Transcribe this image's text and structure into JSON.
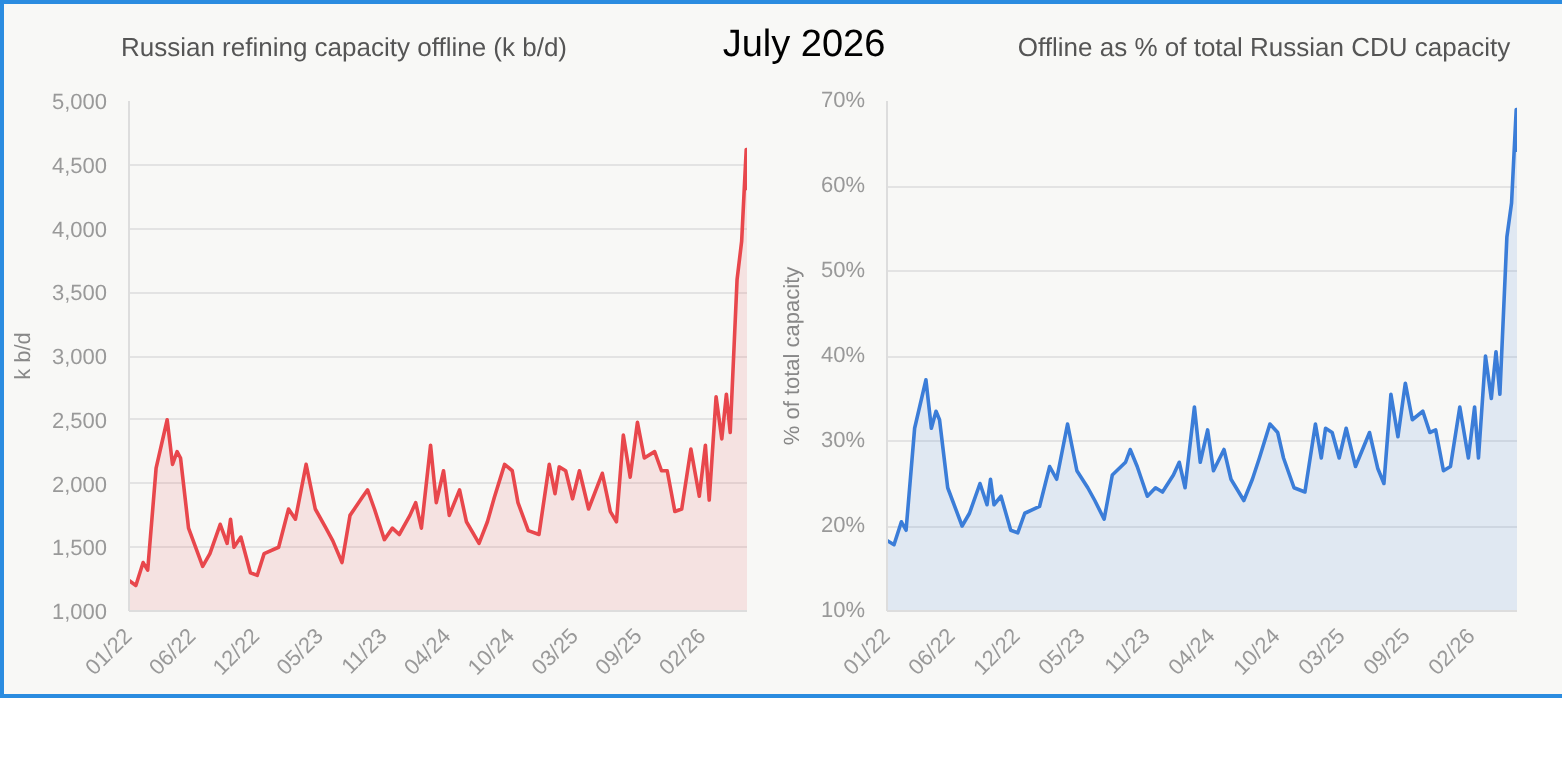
{
  "chart_data": [
    {
      "type": "area",
      "title": "Russian refining capacity offline (k b/d)",
      "ylabel": "k b/d",
      "annotations": [
        "July 2026"
      ],
      "x": [
        "2022-01-10",
        "2022-01-28",
        "2022-02-16",
        "2022-02-28",
        "2022-03-22",
        "2022-04-20",
        "2022-05-04",
        "2022-05-16",
        "2022-05-25",
        "2022-06-15",
        "2022-07-22",
        "2022-08-10",
        "2022-09-06",
        "2022-09-24",
        "2022-10-03",
        "2022-10-12",
        "2022-10-30",
        "2022-11-24",
        "2022-12-12",
        "2022-12-30",
        "2023-02-06",
        "2023-03-04",
        "2023-03-22",
        "2023-04-19",
        "2023-05-13",
        "2023-06-10",
        "2023-06-28",
        "2023-07-22",
        "2023-08-12",
        "2023-09-15",
        "2023-09-27",
        "2023-10-15",
        "2023-11-10",
        "2023-12-01",
        "2023-12-19",
        "2024-01-16",
        "2024-01-31",
        "2024-02-15",
        "2024-03-10",
        "2024-03-25",
        "2024-04-13",
        "2024-04-28",
        "2024-05-25",
        "2024-06-12",
        "2024-07-15",
        "2024-08-06",
        "2024-08-24",
        "2024-09-20",
        "2024-10-10",
        "2024-10-25",
        "2024-11-21",
        "2024-12-19",
        "2025-01-15",
        "2025-01-30",
        "2025-02-10",
        "2025-02-27",
        "2025-03-17",
        "2025-04-04",
        "2025-04-28",
        "2025-06-03",
        "2025-06-24",
        "2025-07-10",
        "2025-07-28",
        "2025-08-15",
        "2025-09-03",
        "2025-09-21",
        "2025-10-18",
        "2025-11-05",
        "2025-11-20",
        "2025-12-10",
        "2025-12-28",
        "2026-01-21",
        "2026-02-12",
        "2026-02-28",
        "2026-03-10",
        "2026-03-28",
        "2026-04-12",
        "2026-04-24",
        "2026-05-04",
        "2026-05-22",
        "2026-06-03",
        "2026-06-15",
        "2026-06-17"
      ],
      "series": [
        {
          "color": "#e8474c",
          "values": [
            1240,
            1200,
            1380,
            1320,
            2120,
            2500,
            2150,
            2250,
            2200,
            1650,
            1350,
            1450,
            1680,
            1530,
            1720,
            1500,
            1580,
            1300,
            1280,
            1450,
            1500,
            1800,
            1720,
            2150,
            1800,
            1650,
            1550,
            1380,
            1750,
            1900,
            1950,
            1800,
            1560,
            1650,
            1600,
            1750,
            1850,
            1650,
            2300,
            1850,
            2100,
            1750,
            1950,
            1700,
            1530,
            1700,
            1890,
            2150,
            2100,
            1850,
            1630,
            1600,
            2150,
            1920,
            2130,
            2100,
            1880,
            2100,
            1800,
            2080,
            1780,
            1700,
            2380,
            2050,
            2480,
            2200,
            2250,
            2100,
            2100,
            1780,
            1800,
            2270,
            1900,
            2300,
            1870,
            2680,
            2350,
            2700,
            2400,
            3600,
            3900,
            4620,
            4300
          ]
        }
      ],
      "xlim": [
        "2022-01-10",
        "2026-06-17"
      ],
      "xticks": [
        {
          "value": "2022-01-10",
          "label": "01/22"
        },
        {
          "value": "2022-06-26",
          "label": "06/22"
        },
        {
          "value": "2022-12-10",
          "label": "12/22"
        },
        {
          "value": "2023-05-26",
          "label": "05/23"
        },
        {
          "value": "2023-11-09",
          "label": "11/23"
        },
        {
          "value": "2024-04-24",
          "label": "04/24"
        },
        {
          "value": "2024-10-08",
          "label": "10/24"
        },
        {
          "value": "2025-03-24",
          "label": "03/25"
        },
        {
          "value": "2025-09-07",
          "label": "09/25"
        },
        {
          "value": "2026-02-21",
          "label": "02/26"
        }
      ],
      "ylim": [
        1000,
        5000
      ],
      "yticks": [
        {
          "value": 1000,
          "label": "1,000"
        },
        {
          "value": 1500,
          "label": "1,500"
        },
        {
          "value": 2000,
          "label": "2,000"
        },
        {
          "value": 2500,
          "label": "2,500"
        },
        {
          "value": 3000,
          "label": "3,000"
        },
        {
          "value": 3500,
          "label": "3,500"
        },
        {
          "value": 4000,
          "label": "4,000"
        },
        {
          "value": 4500,
          "label": "4,500"
        },
        {
          "value": 5000,
          "label": "5,000"
        }
      ],
      "grid": "y"
    },
    {
      "type": "area",
      "title": "Offline as % of total Russian CDU capacity",
      "ylabel": "% of total capacity",
      "x": [
        "2022-01-10",
        "2022-01-28",
        "2022-02-16",
        "2022-02-28",
        "2022-03-22",
        "2022-04-20",
        "2022-05-04",
        "2022-05-16",
        "2022-05-25",
        "2022-06-15",
        "2022-07-22",
        "2022-08-10",
        "2022-09-06",
        "2022-09-24",
        "2022-10-03",
        "2022-10-12",
        "2022-10-30",
        "2022-11-24",
        "2022-12-12",
        "2022-12-30",
        "2023-02-06",
        "2023-03-04",
        "2023-03-22",
        "2023-04-19",
        "2023-05-13",
        "2023-06-10",
        "2023-06-28",
        "2023-07-22",
        "2023-08-12",
        "2023-09-15",
        "2023-09-27",
        "2023-10-15",
        "2023-11-10",
        "2023-12-01",
        "2023-12-19",
        "2024-01-16",
        "2024-01-31",
        "2024-02-15",
        "2024-03-10",
        "2024-03-25",
        "2024-04-13",
        "2024-04-28",
        "2024-05-25",
        "2024-06-12",
        "2024-07-15",
        "2024-08-06",
        "2024-08-24",
        "2024-09-20",
        "2024-10-10",
        "2024-10-25",
        "2024-11-21",
        "2024-12-19",
        "2025-01-15",
        "2025-01-30",
        "2025-02-10",
        "2025-02-27",
        "2025-03-17",
        "2025-04-04",
        "2025-04-28",
        "2025-06-03",
        "2025-06-24",
        "2025-07-10",
        "2025-07-28",
        "2025-08-15",
        "2025-09-03",
        "2025-09-21",
        "2025-10-18",
        "2025-11-05",
        "2025-11-20",
        "2025-12-10",
        "2025-12-28",
        "2026-01-21",
        "2026-02-12",
        "2026-02-28",
        "2026-03-10",
        "2026-03-28",
        "2026-04-12",
        "2026-04-24",
        "2026-05-04",
        "2026-05-22",
        "2026-06-03",
        "2026-06-15",
        "2026-06-17"
      ],
      "series": [
        {
          "color": "#3b7dd8",
          "values": [
            18.3,
            17.8,
            20.5,
            19.5,
            31.5,
            37.2,
            31.5,
            33.5,
            32.5,
            24.5,
            20,
            21.5,
            25,
            22.5,
            25.5,
            22.5,
            23.5,
            19.5,
            19.2,
            21.5,
            22.3,
            27,
            25.5,
            32,
            26.5,
            24.5,
            23,
            20.8,
            26,
            27.5,
            29,
            27,
            23.5,
            24.5,
            24,
            26,
            27.5,
            24.5,
            34,
            27.5,
            31.3,
            26.5,
            29,
            25.5,
            23,
            25.5,
            28,
            32,
            31,
            28,
            24.5,
            24,
            32,
            28,
            31.5,
            31,
            28,
            31.5,
            27,
            31,
            26.8,
            25,
            35.5,
            30.5,
            36.8,
            32.5,
            33.5,
            31,
            31.3,
            26.5,
            27,
            34,
            28,
            34,
            28,
            40,
            35,
            40.5,
            35.5,
            54,
            58,
            69,
            64
          ]
        }
      ],
      "xlim": [
        "2022-01-10",
        "2026-06-17"
      ],
      "xticks": [
        {
          "value": "2022-01-10",
          "label": "01/22"
        },
        {
          "value": "2022-06-26",
          "label": "06/22"
        },
        {
          "value": "2022-12-10",
          "label": "12/22"
        },
        {
          "value": "2023-05-26",
          "label": "05/23"
        },
        {
          "value": "2023-11-09",
          "label": "11/23"
        },
        {
          "value": "2024-04-24",
          "label": "04/24"
        },
        {
          "value": "2024-10-08",
          "label": "10/24"
        },
        {
          "value": "2025-03-24",
          "label": "03/25"
        },
        {
          "value": "2025-09-07",
          "label": "09/25"
        },
        {
          "value": "2026-02-21",
          "label": "02/26"
        }
      ],
      "ylim": [
        10,
        70
      ],
      "yticks": [
        {
          "value": 10,
          "label": "10%"
        },
        {
          "value": 20,
          "label": "20%"
        },
        {
          "value": 30,
          "label": "30%"
        },
        {
          "value": 40,
          "label": "40%"
        },
        {
          "value": 50,
          "label": "50%"
        },
        {
          "value": 60,
          "label": "60%"
        },
        {
          "value": 70,
          "label": "70%"
        }
      ],
      "grid": "y"
    }
  ]
}
